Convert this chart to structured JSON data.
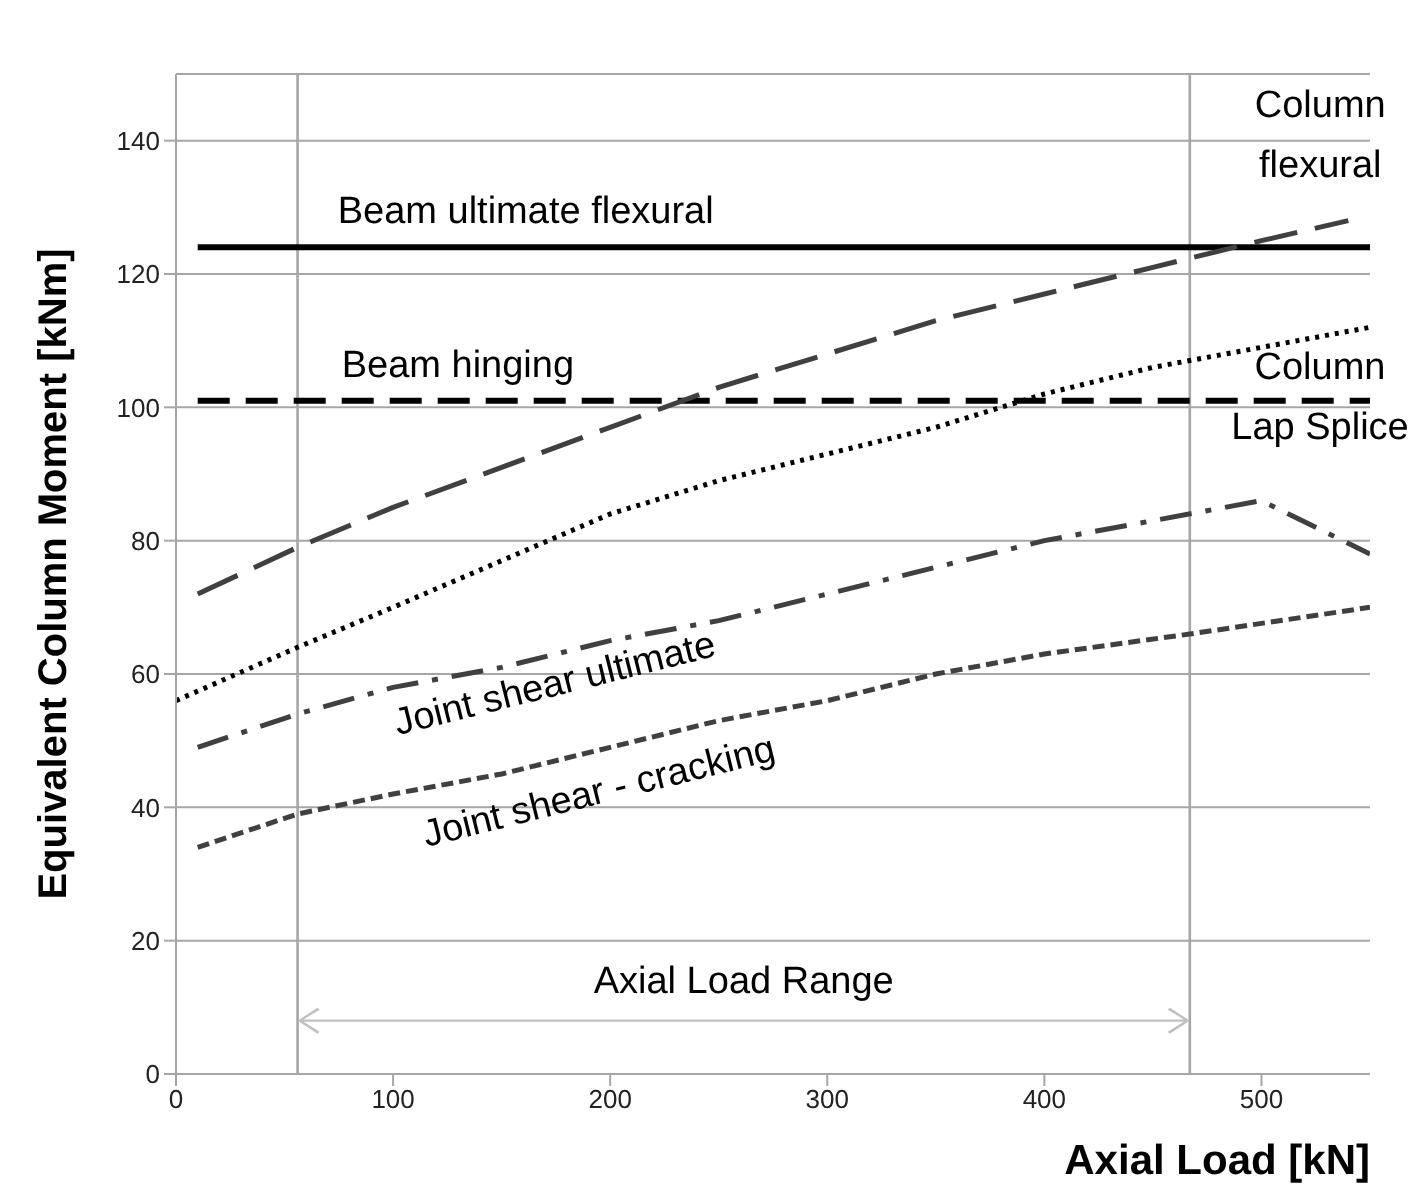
{
  "chart_data": {
    "type": "line",
    "xlabel": "Axial Load [kN]",
    "ylabel": "Equivalent Column Moment [kNm]",
    "xlim": [
      0,
      550
    ],
    "ylim": [
      0,
      150
    ],
    "xticks": [
      0,
      100,
      200,
      300,
      400,
      500
    ],
    "yticks": [
      0,
      20,
      40,
      60,
      80,
      100,
      120,
      140
    ],
    "grid": "y",
    "legend": false,
    "marker": "none",
    "series": [
      {
        "name": "Beam ultimate flexural",
        "color": "#000000",
        "line_style": "solid",
        "x": [
          10,
          550
        ],
        "values": [
          124,
          124
        ]
      },
      {
        "name": "Beam hinging",
        "color": "#000000",
        "line_style": "dashed",
        "x": [
          10,
          550
        ],
        "values": [
          101,
          101
        ]
      },
      {
        "name": "Column flexural",
        "color": "#404040",
        "line_style": "dashed",
        "x": [
          10,
          56,
          100,
          150,
          200,
          250,
          300,
          350,
          400,
          450,
          500,
          540
        ],
        "values": [
          72,
          79,
          85,
          91,
          97,
          103,
          108,
          113,
          117,
          121,
          125,
          128
        ]
      },
      {
        "name": "Column Lap Splice",
        "color": "#000000",
        "line_style": "dotted",
        "x": [
          0,
          56,
          100,
          150,
          200,
          250,
          300,
          350,
          400,
          450,
          500,
          550
        ],
        "values": [
          56,
          64,
          70,
          77,
          84,
          89,
          93,
          97,
          102,
          106,
          109,
          112
        ]
      },
      {
        "name": "Joint shear ultimate",
        "color": "#404040",
        "line_style": "dashed",
        "x": [
          10,
          56,
          100,
          150,
          200,
          250,
          300,
          350,
          400,
          450,
          500,
          550
        ],
        "values": [
          49,
          54,
          58,
          61,
          65,
          68,
          72,
          76,
          80,
          83,
          86,
          78
        ]
      },
      {
        "name": "Joint shear - cracking",
        "color": "#404040",
        "line_style": "dashed",
        "x": [
          10,
          56,
          100,
          150,
          200,
          250,
          300,
          350,
          400,
          467,
          550
        ],
        "values": [
          34,
          39,
          42,
          45,
          49,
          53,
          56,
          60,
          63,
          66,
          70
        ]
      }
    ],
    "ref_lines": [
      {
        "axis": "x",
        "value": 56,
        "color": "#a6a6a6"
      },
      {
        "axis": "x",
        "value": 467,
        "color": "#a6a6a6"
      }
    ],
    "annotations": [
      "Axial Load Range"
    ]
  }
}
